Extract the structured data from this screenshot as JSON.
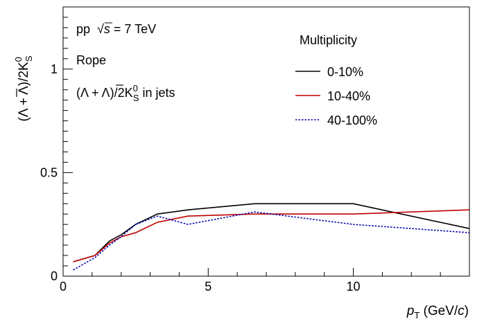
{
  "chart_data": {
    "type": "line",
    "ylabel": "(Λ + Λ)/2K",
    "ylabel_sup": "0",
    "ylabel_sub": "S",
    "xlabel_p": "p",
    "xlabel_sub": "T",
    "xlabel_rest_open": " (GeV/",
    "xlabel_c": "c",
    "xlabel_rest_close": ")",
    "xlim": [
      0,
      14
    ],
    "ylim": [
      0,
      1.3
    ],
    "xticks": [
      0,
      5,
      10
    ],
    "yticks": [
      0,
      0.5,
      1
    ],
    "ytick_labels": [
      "0",
      "0.5",
      "1"
    ],
    "xtick_labels": [
      "0",
      "5",
      "10"
    ],
    "grid": false,
    "legend_position": "top-right",
    "legend_title": "Multiplicity",
    "annotations": {
      "system_prefix": "pp",
      "sqrt_symbol": "√",
      "s_symbol": "s",
      "energy": " = 7 TeV",
      "model": "Rope",
      "ratio_open": "(Λ + Λ)/2K",
      "ratio_sup": "0",
      "ratio_sub": "S",
      "ratio_suffix": " in jets"
    },
    "series": [
      {
        "name": "0-10%",
        "color": "#000000",
        "style": "solid",
        "x": [
          0.35,
          1.1,
          1.6,
          2.0,
          2.5,
          3.25,
          4.3,
          6.6,
          10.0,
          14.0
        ],
        "y": [
          0.07,
          0.1,
          0.17,
          0.2,
          0.25,
          0.3,
          0.32,
          0.35,
          0.35,
          0.23
        ]
      },
      {
        "name": "10-40%",
        "color": "#c00000",
        "style": "solid",
        "x": [
          0.35,
          1.1,
          1.6,
          2.0,
          2.5,
          3.25,
          4.3,
          6.6,
          10.0,
          14.0
        ],
        "y": [
          0.07,
          0.1,
          0.16,
          0.19,
          0.21,
          0.26,
          0.29,
          0.3,
          0.3,
          0.32
        ]
      },
      {
        "name": "40-100%",
        "color": "#0000b0",
        "style": "dotted",
        "x": [
          0.35,
          1.1,
          1.6,
          2.0,
          2.5,
          3.25,
          4.3,
          6.6,
          10.0,
          14.0
        ],
        "y": [
          0.03,
          0.09,
          0.15,
          0.19,
          0.25,
          0.29,
          0.25,
          0.31,
          0.25,
          0.21
        ]
      }
    ]
  }
}
